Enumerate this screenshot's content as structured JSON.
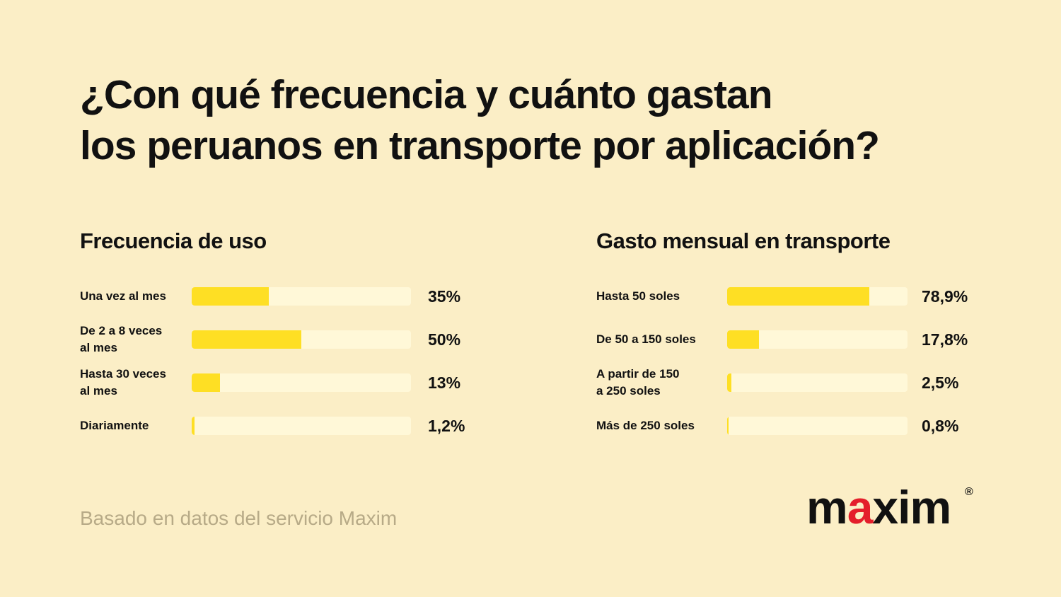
{
  "title": {
    "line1": "¿Con qué frecuencia y cuánto gastan",
    "line2": "los peruanos en transporte por aplicación?"
  },
  "chart_data": [
    {
      "type": "bar",
      "orientation": "horizontal",
      "title": "Frecuencia de uso",
      "categories": [
        "Una vez al mes",
        "De 2 a 8 veces\nal mes",
        "Hasta 30 veces\nal mes",
        "Diariamente"
      ],
      "values": [
        35,
        50,
        13,
        1.2
      ],
      "value_labels": [
        "35%",
        "50%",
        "13%",
        "1,2%"
      ],
      "xlim": [
        0,
        100
      ],
      "unit": "%",
      "bar_color": "#fedf24",
      "track_color": "#fff8d8"
    },
    {
      "type": "bar",
      "orientation": "horizontal",
      "title": "Gasto mensual en transporte",
      "categories": [
        "Hasta 50 soles",
        "De 50 a 150 soles",
        "A partir de 150\na 250 soles",
        "Más de 250 soles"
      ],
      "values": [
        78.9,
        17.8,
        2.5,
        0.8
      ],
      "value_labels": [
        "78,9%",
        "17,8%",
        "2,5%",
        "0,8%"
      ],
      "xlim": [
        0,
        100
      ],
      "unit": "%",
      "bar_color": "#fedf24",
      "track_color": "#fff8d8"
    }
  ],
  "footer": {
    "source": "Basado en datos del servicio Maxim"
  },
  "logo": {
    "text_before": "m",
    "text_accent": "a",
    "text_after": "xim",
    "registered": "®",
    "accent_color": "#e41e2b"
  },
  "colors": {
    "background": "#fbeec6",
    "bar": "#fedf24",
    "track": "#fff8d8",
    "footer_text": "#b7aa87"
  }
}
